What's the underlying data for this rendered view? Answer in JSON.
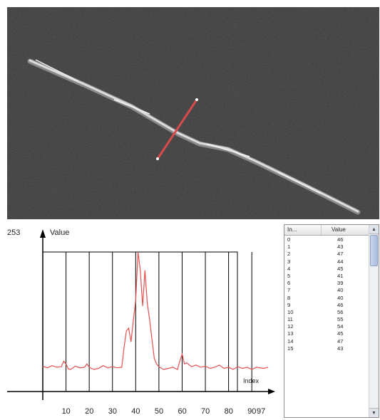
{
  "profile": {
    "y_max_label": "253",
    "y_axis_label": "Value",
    "x_axis_label": "Index",
    "x_end_label": "97",
    "line_color": "#e8504f",
    "grid_color": "#000000"
  },
  "chart_data": {
    "type": "line",
    "xlabel": "Index",
    "ylabel": "Value",
    "xlim": [
      0,
      97
    ],
    "ylim": [
      0,
      253
    ],
    "x_ticks": [
      "10",
      "20",
      "30",
      "40",
      "50",
      "60",
      "70",
      "80",
      "90"
    ],
    "series": [
      {
        "x": [
          0,
          2,
          4,
          6,
          8,
          9,
          10,
          11,
          12,
          14,
          16,
          18,
          19,
          20,
          22,
          24,
          26,
          28,
          30,
          32,
          34,
          35,
          36,
          37,
          38,
          39,
          40,
          41,
          42,
          43,
          44,
          45,
          46,
          47,
          48,
          49,
          50,
          52,
          54,
          56,
          58,
          59,
          60,
          61,
          62,
          64,
          66,
          68,
          70,
          72,
          74,
          76,
          78,
          80,
          82,
          84,
          86,
          88,
          90,
          92,
          95,
          97
        ],
        "y": [
          46,
          43,
          47,
          44,
          45,
          55,
          50,
          41,
          40,
          46,
          43,
          44,
          50,
          44,
          40,
          42,
          47,
          43,
          45,
          43,
          44,
          80,
          110,
          115,
          90,
          130,
          165,
          253,
          220,
          155,
          220,
          160,
          130,
          95,
          60,
          50,
          45,
          40,
          42,
          44,
          40,
          55,
          68,
          50,
          52,
          45,
          48,
          44,
          46,
          42,
          44,
          48,
          42,
          44,
          40,
          45,
          42,
          44,
          40,
          44,
          42,
          44
        ]
      }
    ]
  },
  "table": {
    "header_index": "In...",
    "header_value": "Value",
    "rows": [
      {
        "index": "0",
        "value": "46"
      },
      {
        "index": "1",
        "value": "43"
      },
      {
        "index": "2",
        "value": "47"
      },
      {
        "index": "3",
        "value": "44"
      },
      {
        "index": "4",
        "value": "45"
      },
      {
        "index": "5",
        "value": "41"
      },
      {
        "index": "6",
        "value": "39"
      },
      {
        "index": "7",
        "value": "40"
      },
      {
        "index": "8",
        "value": "40"
      },
      {
        "index": "9",
        "value": "46"
      },
      {
        "index": "10",
        "value": "56"
      },
      {
        "index": "11",
        "value": "55"
      },
      {
        "index": "12",
        "value": "54"
      },
      {
        "index": "13",
        "value": "45"
      },
      {
        "index": "14",
        "value": "47"
      },
      {
        "index": "15",
        "value": "43"
      }
    ]
  }
}
